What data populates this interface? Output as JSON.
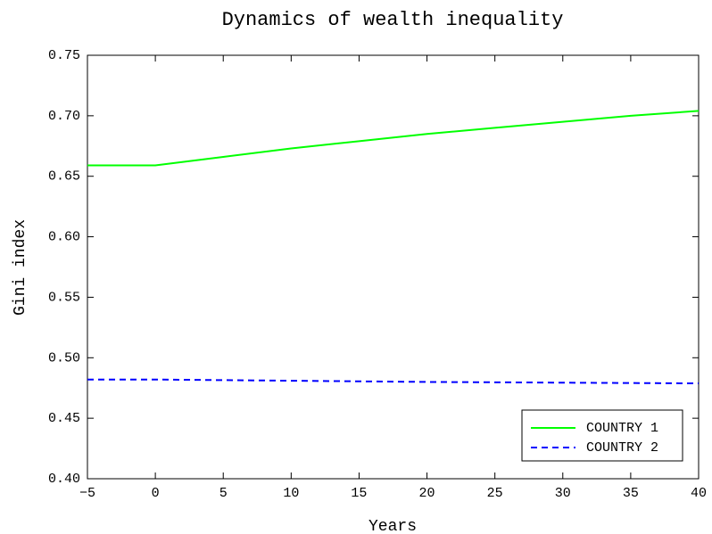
{
  "chart_data": {
    "type": "line",
    "title": "Dynamics of wealth inequality",
    "x_label": "Years",
    "y_label": "Gini index",
    "x": [
      -5,
      0,
      5,
      10,
      15,
      20,
      25,
      30,
      35,
      40
    ],
    "series": [
      {
        "name": "COUNTRY 1",
        "color": "#00ff00",
        "linestyle": "solid",
        "values": [
          0.659,
          0.659,
          0.666,
          0.673,
          0.679,
          0.685,
          0.69,
          0.695,
          0.7,
          0.704
        ]
      },
      {
        "name": "COUNTRY 2",
        "color": "#0000ff",
        "linestyle": "dashed",
        "values": [
          0.482,
          0.482,
          0.4815,
          0.481,
          0.4805,
          0.48,
          0.4797,
          0.4794,
          0.4791,
          0.4788
        ]
      }
    ],
    "xlim": [
      -5,
      40
    ],
    "xticks": [
      {
        "value": -5,
        "label": "−5"
      },
      0,
      5,
      10,
      15,
      20,
      25,
      30,
      35,
      40
    ],
    "ylim": [
      0.4,
      0.75
    ],
    "yticks": [
      {
        "value": 0.4,
        "label": "0.40"
      },
      0.45,
      {
        "value": 0.5,
        "label": "0.50"
      },
      0.55,
      {
        "value": 0.6,
        "label": "0.60"
      },
      0.65,
      {
        "value": 0.7,
        "label": "0.70"
      },
      0.75
    ],
    "grid": false,
    "legend": "lower right"
  }
}
